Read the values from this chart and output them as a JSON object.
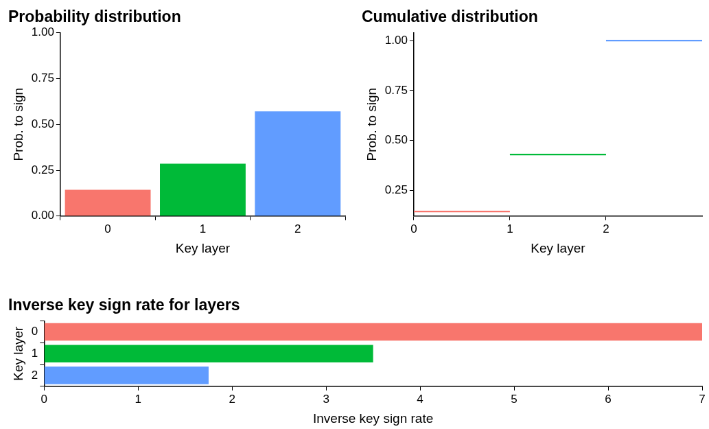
{
  "chart_data": [
    {
      "type": "bar",
      "title": "Probability distribution",
      "xlabel": "Key layer",
      "ylabel": "Prob. to sign",
      "categories": [
        "0",
        "1",
        "2"
      ],
      "values": [
        0.143,
        0.286,
        0.571
      ],
      "colors": [
        "#f8766d",
        "#00ba38",
        "#619cff"
      ],
      "ylim": [
        0,
        1
      ],
      "yticks": [
        {
          "value": 0,
          "label": "0.00"
        },
        {
          "value": 0.25,
          "label": "0.25"
        },
        {
          "value": 0.5,
          "label": "0.50"
        },
        {
          "value": 0.75,
          "label": "0.75"
        },
        {
          "value": 1,
          "label": "1.00"
        }
      ],
      "grid": false
    },
    {
      "type": "line",
      "title": "Cumulative distribution",
      "xlabel": "Key layer",
      "ylabel": "Prob. to sign",
      "marker": "none",
      "series": [
        {
          "color": "#f8766d",
          "x": [
            0,
            1
          ],
          "values": [
            0.143,
            0.143
          ]
        },
        {
          "color": "#00ba38",
          "x": [
            1,
            2
          ],
          "values": [
            0.429,
            0.429
          ]
        },
        {
          "color": "#619cff",
          "x": [
            2,
            3
          ],
          "values": [
            1,
            1
          ]
        }
      ],
      "xlim": [
        0,
        3
      ],
      "xticks": [
        0,
        1,
        2
      ],
      "ylim": [
        0.12,
        1.04
      ],
      "yticks": [
        {
          "value": 0.25,
          "label": "0.25"
        },
        {
          "value": 0.5,
          "label": "0.50"
        },
        {
          "value": 0.75,
          "label": "0.75"
        },
        {
          "value": 1,
          "label": "1.00"
        }
      ],
      "grid": false
    },
    {
      "type": "bar",
      "orientation": "horizontal",
      "title": "Inverse key sign rate for layers",
      "xlabel": "Inverse key sign rate",
      "ylabel": "Key layer",
      "categories": [
        "0",
        "1",
        "2"
      ],
      "values": [
        7,
        3.5,
        1.75
      ],
      "colors": [
        "#f8766d",
        "#00ba38",
        "#619cff"
      ],
      "xlim": [
        0,
        7
      ],
      "xticks": [
        0,
        1,
        2,
        3,
        4,
        5,
        6,
        7
      ],
      "grid": false
    }
  ]
}
